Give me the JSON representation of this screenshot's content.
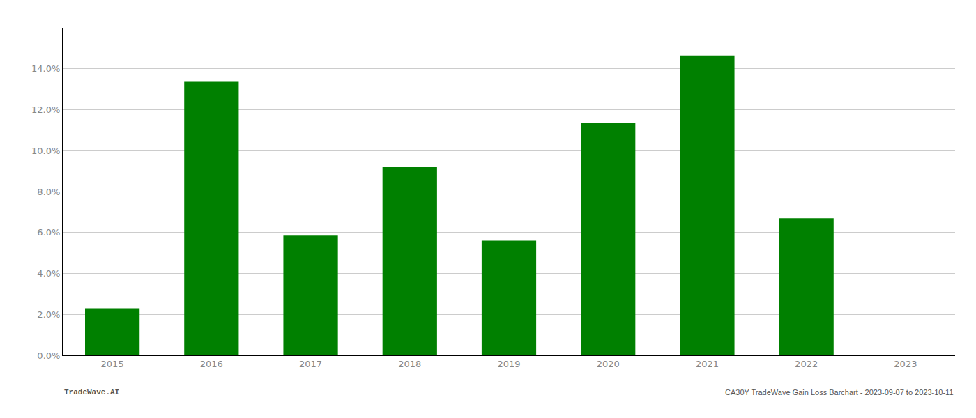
{
  "chart_data": {
    "type": "bar",
    "categories": [
      "2015",
      "2016",
      "2017",
      "2018",
      "2019",
      "2020",
      "2021",
      "2022",
      "2023"
    ],
    "values": [
      0.023,
      0.134,
      0.0585,
      0.092,
      0.056,
      0.1135,
      0.1465,
      0.067,
      0.0
    ],
    "color": "#008000",
    "ylim": [
      0,
      0.16
    ],
    "yticks": [
      {
        "value": 0.0,
        "label": "0.0%"
      },
      {
        "value": 0.02,
        "label": "2.0%"
      },
      {
        "value": 0.04,
        "label": "4.0%"
      },
      {
        "value": 0.06,
        "label": "6.0%"
      },
      {
        "value": 0.08,
        "label": "8.0%"
      },
      {
        "value": 0.1,
        "label": "10.0%"
      },
      {
        "value": 0.12,
        "label": "12.0%"
      },
      {
        "value": 0.14,
        "label": "14.0%"
      }
    ],
    "grid": true,
    "annotations": [
      "TradeWave.AI",
      "CA30Y TradeWave Gain Loss Barchart - 2023-09-07 to 2023-10-11"
    ]
  }
}
